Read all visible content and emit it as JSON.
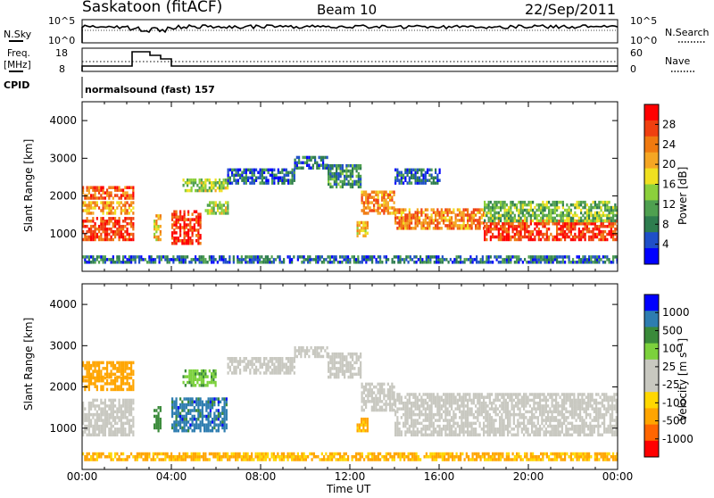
{
  "header": {
    "station": "Saskatoon (fitACF)",
    "beam": "Beam 10",
    "date": "22/Sep/2011"
  },
  "top_panels": {
    "nsky_label": "N.Sky",
    "nsearch_label": "N.Search",
    "nsky_ticks": [
      "10^5",
      "10^0"
    ],
    "nsearch_ticks": [
      "10^5",
      "10^0"
    ],
    "freq_label": [
      "Freq.",
      "[MHz]"
    ],
    "freq_ticks": [
      "18",
      "8"
    ],
    "nave_label": "Nave",
    "nave_ticks": [
      "60",
      "0"
    ],
    "cpid_label": "CPID",
    "cpid_text": "normalsound (fast) 157"
  },
  "colors": {
    "power_scale": [
      "#0000ff",
      "#1f4fc8",
      "#2e7d4f",
      "#4fa050",
      "#8cd03c",
      "#f0e020",
      "#f5a623",
      "#f07a10",
      "#f04010",
      "#ff0000"
    ],
    "velocity_scale": [
      "#ff0000",
      "#ff6600",
      "#ffa500",
      "#ffd700",
      "#c8c8c0",
      "#c8c8c0",
      "#7cd13c",
      "#3a8a3a",
      "#2e7db0",
      "#0000ff"
    ]
  },
  "chart_data": [
    {
      "type": "heatmap",
      "name": "power",
      "ylabel": "Slant Range [km]",
      "ylim": [
        0,
        4500
      ],
      "yticks": [
        "1000",
        "2000",
        "3000",
        "4000"
      ],
      "xlim": [
        0,
        24
      ],
      "colorbar": {
        "label": "Power [dB]",
        "ticks": [
          "28",
          "24",
          "20",
          "16",
          "12",
          "8",
          "4"
        ],
        "range": [
          0,
          30
        ]
      },
      "regions": [
        {
          "t0": 0.0,
          "t1": 2.3,
          "r0": 800,
          "r1": 1400,
          "level": 26
        },
        {
          "t0": 0.0,
          "t1": 2.3,
          "r0": 1500,
          "r1": 1800,
          "level": 20
        },
        {
          "t0": 0.0,
          "t1": 2.3,
          "r0": 1900,
          "r1": 2200,
          "level": 24
        },
        {
          "t0": 3.2,
          "t1": 3.5,
          "r0": 800,
          "r1": 1500,
          "level": 18
        },
        {
          "t0": 4.0,
          "t1": 5.3,
          "r0": 700,
          "r1": 1600,
          "level": 27
        },
        {
          "t0": 5.5,
          "t1": 6.5,
          "r0": 1500,
          "r1": 1800,
          "level": 14
        },
        {
          "t0": 4.5,
          "t1": 6.5,
          "r0": 2100,
          "r1": 2400,
          "level": 14
        },
        {
          "t0": 6.5,
          "t1": 9.5,
          "r0": 2300,
          "r1": 2700,
          "level": 6
        },
        {
          "t0": 9.5,
          "t1": 11.0,
          "r0": 2700,
          "r1": 3000,
          "level": 6
        },
        {
          "t0": 11.0,
          "t1": 12.5,
          "r0": 2200,
          "r1": 2800,
          "level": 8
        },
        {
          "t0": 12.5,
          "t1": 14.0,
          "r0": 1500,
          "r1": 2100,
          "level": 22
        },
        {
          "t0": 12.3,
          "t1": 12.8,
          "r0": 900,
          "r1": 1300,
          "level": 18
        },
        {
          "t0": 14.0,
          "t1": 18.0,
          "r0": 1100,
          "r1": 1600,
          "level": 22
        },
        {
          "t0": 18.0,
          "t1": 24.0,
          "r0": 800,
          "r1": 1300,
          "level": 26
        },
        {
          "t0": 18.0,
          "t1": 24.0,
          "r0": 1300,
          "r1": 1800,
          "level": 12
        },
        {
          "t0": 14.0,
          "t1": 16.0,
          "r0": 2300,
          "r1": 2700,
          "level": 6
        },
        {
          "t0": 0.0,
          "t1": 24.0,
          "r0": 200,
          "r1": 400,
          "level": 6
        }
      ]
    },
    {
      "type": "heatmap",
      "name": "velocity",
      "ylabel": "Slant Range [km]",
      "ylim": [
        0,
        4500
      ],
      "yticks": [
        "1000",
        "2000",
        "3000",
        "4000"
      ],
      "xlim": [
        0,
        24
      ],
      "xlabel": "Time UT",
      "xticks": [
        "00:00",
        "04:00",
        "08:00",
        "12:00",
        "16:00",
        "20:00",
        "00:00"
      ],
      "colorbar": {
        "label": "Velocity [m s⁻¹]",
        "ticks": [
          "1000",
          "500",
          "100",
          "25",
          "-25",
          "-100",
          "-500",
          "-1000"
        ]
      },
      "regions": [
        {
          "t0": 0.0,
          "t1": 2.3,
          "r0": 800,
          "r1": 1700,
          "level": 0
        },
        {
          "t0": 0.0,
          "t1": 2.3,
          "r0": 1900,
          "r1": 2200,
          "level": -300
        },
        {
          "t0": 0.0,
          "t1": 2.3,
          "r0": 2200,
          "r1": 2600,
          "level": -200
        },
        {
          "t0": 3.2,
          "t1": 3.5,
          "r0": 900,
          "r1": 1500,
          "level": 300
        },
        {
          "t0": 4.0,
          "t1": 6.5,
          "r0": 900,
          "r1": 1700,
          "level": 700
        },
        {
          "t0": 4.5,
          "t1": 6.0,
          "r0": 2000,
          "r1": 2400,
          "level": 80
        },
        {
          "t0": 6.5,
          "t1": 9.5,
          "r0": 2300,
          "r1": 2700,
          "level": 0
        },
        {
          "t0": 9.5,
          "t1": 11.0,
          "r0": 2700,
          "r1": 2950,
          "level": 0
        },
        {
          "t0": 11.0,
          "t1": 12.5,
          "r0": 2200,
          "r1": 2800,
          "level": 0
        },
        {
          "t0": 12.5,
          "t1": 14.0,
          "r0": 1400,
          "r1": 2100,
          "level": 0
        },
        {
          "t0": 12.3,
          "t1": 12.8,
          "r0": 900,
          "r1": 1200,
          "level": -150
        },
        {
          "t0": 14.0,
          "t1": 24.0,
          "r0": 800,
          "r1": 1800,
          "level": 0
        },
        {
          "t0": 0.0,
          "t1": 24.0,
          "r0": 200,
          "r1": 400,
          "level": -120
        }
      ]
    }
  ]
}
